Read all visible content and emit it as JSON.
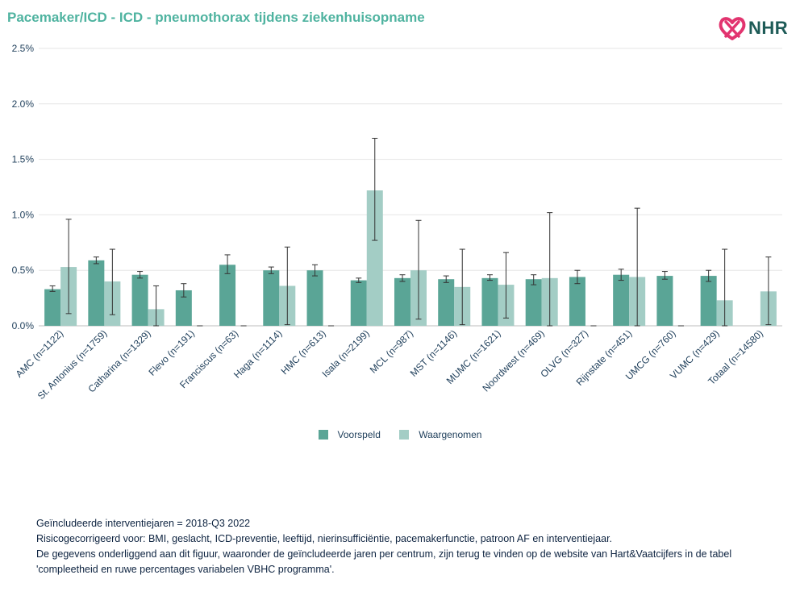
{
  "title": "Pacemaker/ICD - ICD - pneumothorax tijdens ziekenhuisopname",
  "logo": {
    "text": "NHR",
    "icon": "nhr-heart-logo-icon"
  },
  "colors": {
    "title": "#4fb3a0",
    "voorspeld": "#5aa596",
    "waargenomen": "#a3cdc5",
    "errorbar": "#333333",
    "axis_text": "#1f3f5b",
    "grid": "#e6e6e6"
  },
  "legend": [
    {
      "label": "Voorspeld",
      "color": "#5aa596"
    },
    {
      "label": "Waargenomen",
      "color": "#a3cdc5"
    }
  ],
  "footnotes": [
    "Geïncludeerde interventiejaren = 2018-Q3 2022",
    "Risicogecorrigeerd voor: BMI, geslacht, ICD-preventie, leeftijd, nierinsufficiëntie, pacemakerfunctie, patroon AF en interventiejaar.",
    "De gegevens onderliggend aan dit figuur, waaronder de geïncludeerde jaren per centrum, zijn terug te vinden op de website van Hart&Vaatcijfers in de tabel",
    "'compleetheid en ruwe percentages variabelen VBHC programma'."
  ],
  "chart_data": {
    "type": "bar",
    "ylim": [
      0,
      2.5
    ],
    "yticks": [
      0,
      0.5,
      1.0,
      1.5,
      2.0,
      2.5
    ],
    "ytick_labels": [
      "0.0%",
      "0.5%",
      "1.0%",
      "1.5%",
      "2.0%",
      "2.5%"
    ],
    "grid": true,
    "legend_position": "bottom",
    "categories": [
      "AMC (n=1122)",
      "St. Antonius (n=1759)",
      "Catharina (n=1329)",
      "Flevo (n=191)",
      "Franciscus (n=63)",
      "Haga (n=1114)",
      "HMC (n=613)",
      "Isala (n=2199)",
      "MCL (n=987)",
      "MST (n=1146)",
      "MUMC (n=1621)",
      "Noordwest (n=469)",
      "OLVG (n=327)",
      "Rijnstate (n=451)",
      "UMCG (n=760)",
      "VUMC (n=429)",
      "Totaal (n=14580)"
    ],
    "series": [
      {
        "name": "Voorspeld",
        "values": [
          0.33,
          0.59,
          0.46,
          0.32,
          0.55,
          0.5,
          0.5,
          0.41,
          0.43,
          0.42,
          0.43,
          0.42,
          0.44,
          0.46,
          0.45,
          0.45,
          null
        ],
        "error_low": [
          0.31,
          0.56,
          0.43,
          0.26,
          0.47,
          0.47,
          0.45,
          0.39,
          0.4,
          0.39,
          0.41,
          0.37,
          0.38,
          0.41,
          0.42,
          0.4,
          null
        ],
        "error_high": [
          0.36,
          0.62,
          0.49,
          0.38,
          0.64,
          0.53,
          0.55,
          0.43,
          0.46,
          0.45,
          0.46,
          0.46,
          0.5,
          0.51,
          0.49,
          0.5,
          null
        ]
      },
      {
        "name": "Waargenomen",
        "values": [
          0.53,
          0.4,
          0.15,
          0.0,
          0.0,
          0.36,
          0.0,
          1.22,
          0.5,
          0.35,
          0.37,
          0.43,
          0.0,
          0.44,
          0.0,
          0.23,
          0.31
        ],
        "error_low": [
          0.11,
          0.1,
          0.0,
          0.0,
          0.0,
          0.01,
          0.0,
          0.77,
          0.06,
          0.01,
          0.07,
          0.0,
          0.0,
          0.0,
          0.0,
          0.0,
          0.01
        ],
        "error_high": [
          0.96,
          0.69,
          0.36,
          0.0,
          0.0,
          0.71,
          0.0,
          1.69,
          0.95,
          0.69,
          0.66,
          1.02,
          0.0,
          1.06,
          0.0,
          0.69,
          0.62
        ]
      }
    ]
  }
}
